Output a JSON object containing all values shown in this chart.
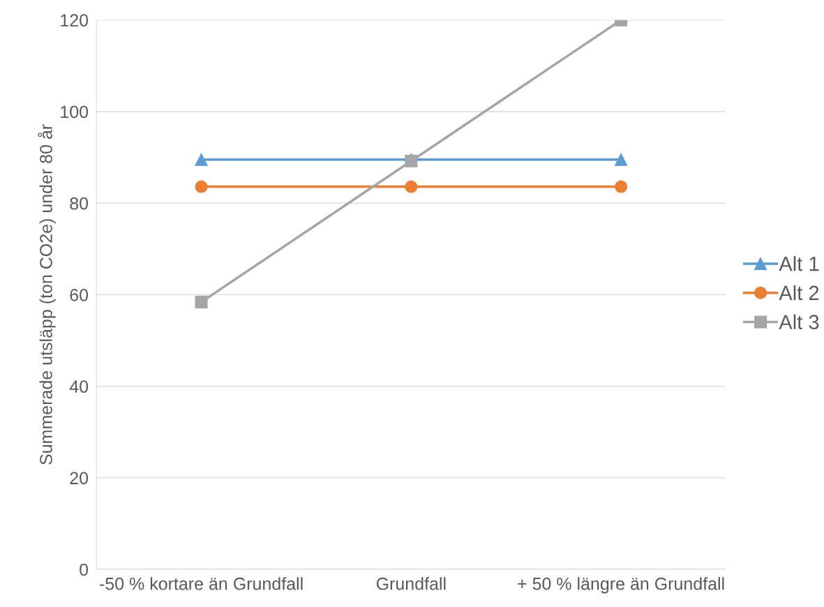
{
  "chart_data": {
    "type": "line",
    "ylabel": "Summerade utsläpp (ton CO2e) under 80 år",
    "categories": [
      "-50 % kortare än Grundfall",
      "Grundfall",
      "+ 50 % längre än Grundfall"
    ],
    "series": [
      {
        "name": "Alt 1",
        "color": "#5b9bd5",
        "marker": "triangle",
        "values": [
          89.5,
          89.5,
          89.5
        ]
      },
      {
        "name": "Alt 2",
        "color": "#ed7d31",
        "marker": "circle",
        "values": [
          83.6,
          83.6,
          83.6
        ]
      },
      {
        "name": "Alt 3",
        "color": "#a5a5a5",
        "marker": "square",
        "values": [
          58.4,
          89.2,
          120
        ]
      }
    ],
    "ylim": [
      0,
      120
    ],
    "yticks": [
      0,
      20,
      40,
      60,
      80,
      100,
      120
    ],
    "grid": "y",
    "legend": "right",
    "line_style": "solid"
  }
}
